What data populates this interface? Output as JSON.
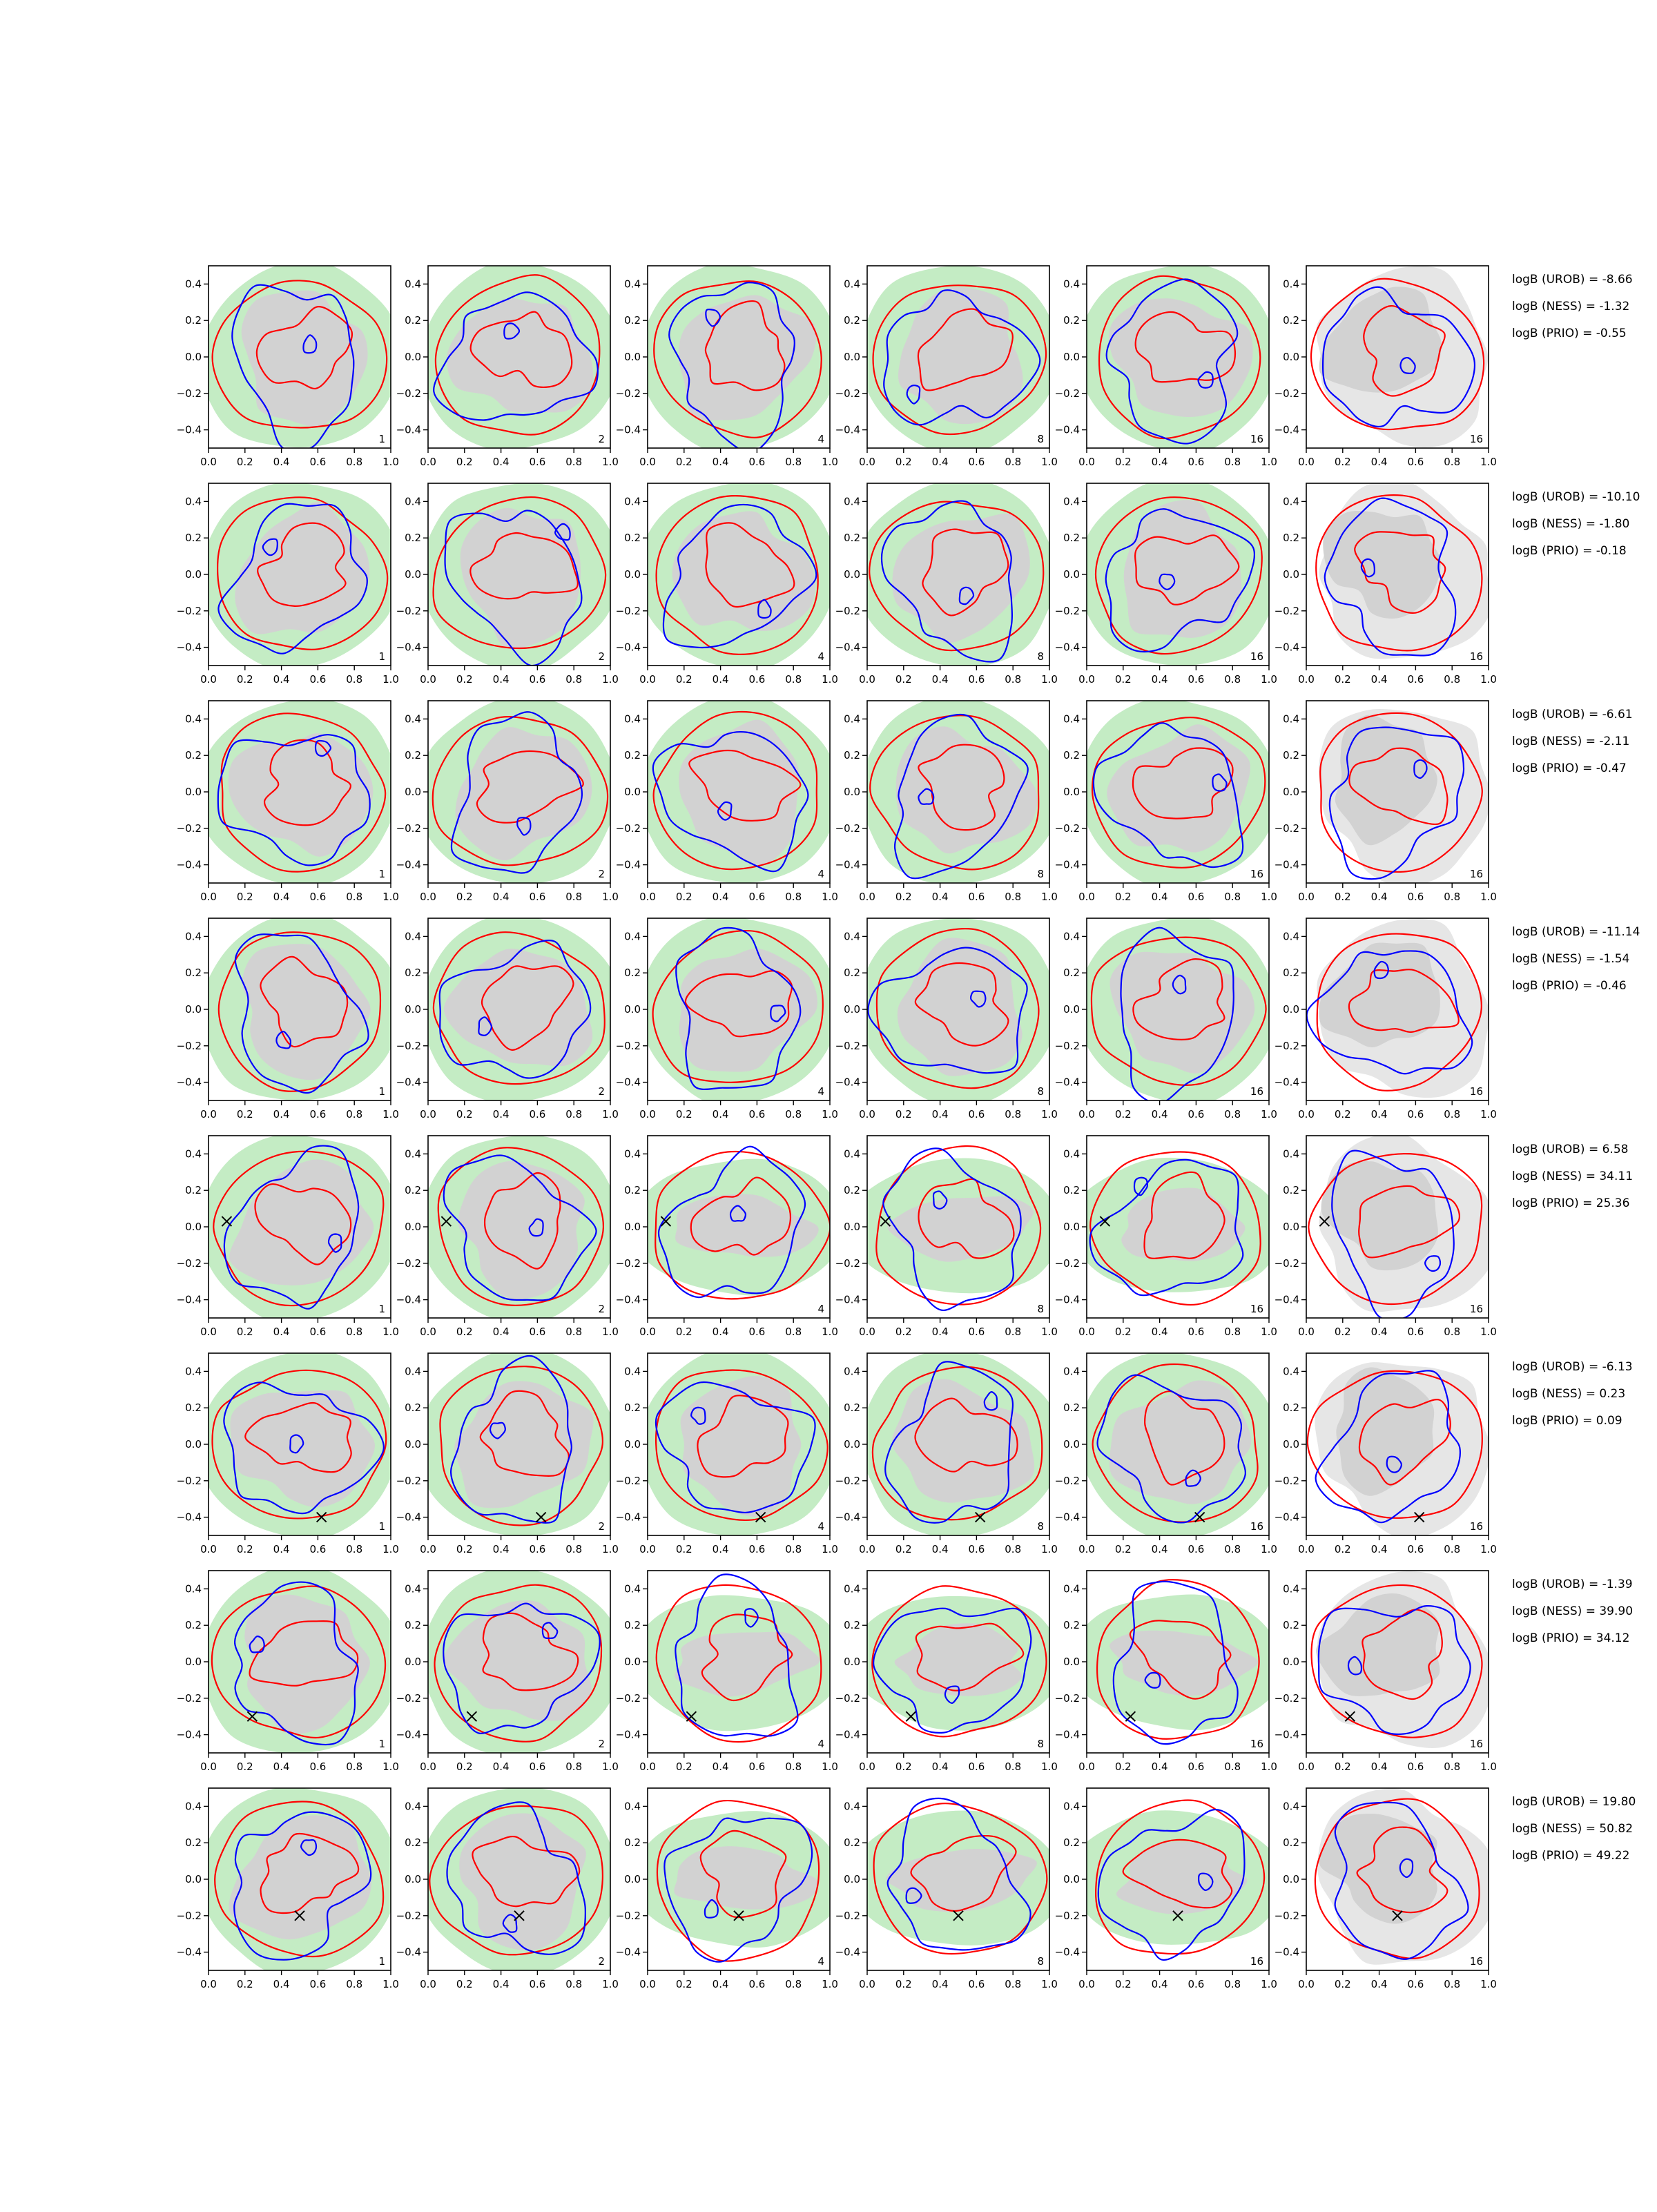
{
  "chart_data": {
    "type": "contour-grid",
    "rows": 8,
    "columns": 6,
    "column_labels": [
      "1",
      "2",
      "4",
      "8",
      "16",
      "16"
    ],
    "x_ticks": [
      "0.0",
      "0.2",
      "0.4",
      "0.6",
      "0.8",
      "1.0"
    ],
    "y_ticks": [
      "0.4",
      "0.2",
      "0.0",
      "−0.2",
      "−0.4"
    ],
    "xlim": [
      0,
      1
    ],
    "ylim": [
      -0.5,
      0.5
    ],
    "colors": {
      "light_region": "#c4ecc4",
      "grey_region": "#d2d2d2",
      "white_panel_region": "#e6e6e6",
      "blue_contour": "#0000ff",
      "red_contour": "#ff0000",
      "marker": "#000000"
    },
    "markers": [
      null,
      null,
      null,
      null,
      {
        "x": 0.1,
        "y": 0.03
      },
      {
        "x": 0.62,
        "y": -0.4
      },
      {
        "x": 0.24,
        "y": -0.3
      },
      {
        "x": 0.5,
        "y": -0.2
      }
    ],
    "logB": [
      [
        "logB (UROB) = -8.66",
        "logB (NESS) = -1.32",
        "logB (PRIO) = -0.55"
      ],
      [
        "logB (UROB) = -10.10",
        "logB (NESS) = -1.80",
        "logB (PRIO) = -0.18"
      ],
      [
        "logB (UROB) = -6.61",
        "logB (NESS) = -2.11",
        "logB (PRIO) = -0.47"
      ],
      [
        "logB (UROB) = -11.14",
        "logB (NESS) = -1.54",
        "logB (PRIO) = -0.46"
      ],
      [
        "logB (UROB) = 6.58",
        "logB (NESS) = 34.11",
        "logB (PRIO) = 25.36"
      ],
      [
        "logB (UROB) = -6.13",
        "logB (NESS) = 0.23",
        "logB (PRIO) = 0.09"
      ],
      [
        "logB (UROB) = -1.39",
        "logB (NESS) = 39.90",
        "logB (PRIO) = 34.12"
      ],
      [
        "logB (UROB) = 19.80",
        "logB (NESS) = 50.82",
        "logB (PRIO) = 49.22"
      ]
    ]
  }
}
